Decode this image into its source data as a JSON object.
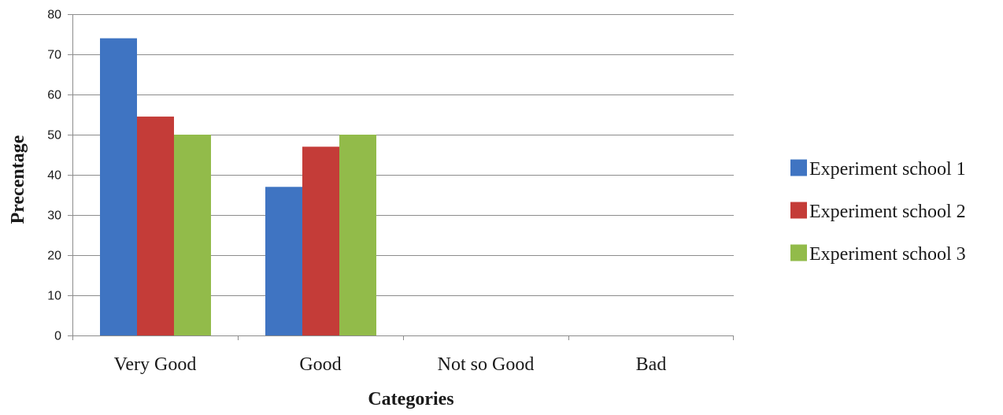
{
  "chart_data": {
    "type": "bar",
    "categories": [
      "Very Good",
      "Good",
      "Not so Good",
      "Bad"
    ],
    "series": [
      {
        "name": "Experiment school 1",
        "color": "#3f74c2",
        "values": [
          74,
          37,
          0,
          0
        ]
      },
      {
        "name": "Experiment school 2",
        "color": "#c43c38",
        "values": [
          54.5,
          47,
          0,
          0
        ]
      },
      {
        "name": "Experiment school 3",
        "color": "#92bb4a",
        "values": [
          50,
          50,
          0,
          0
        ]
      }
    ],
    "title": "",
    "xlabel": "Categories",
    "ylabel": "Precentage",
    "ylim": [
      0,
      80
    ],
    "yticks": [
      0,
      10,
      20,
      30,
      40,
      50,
      60,
      70,
      80
    ],
    "grid": true,
    "legend_position": "right"
  }
}
